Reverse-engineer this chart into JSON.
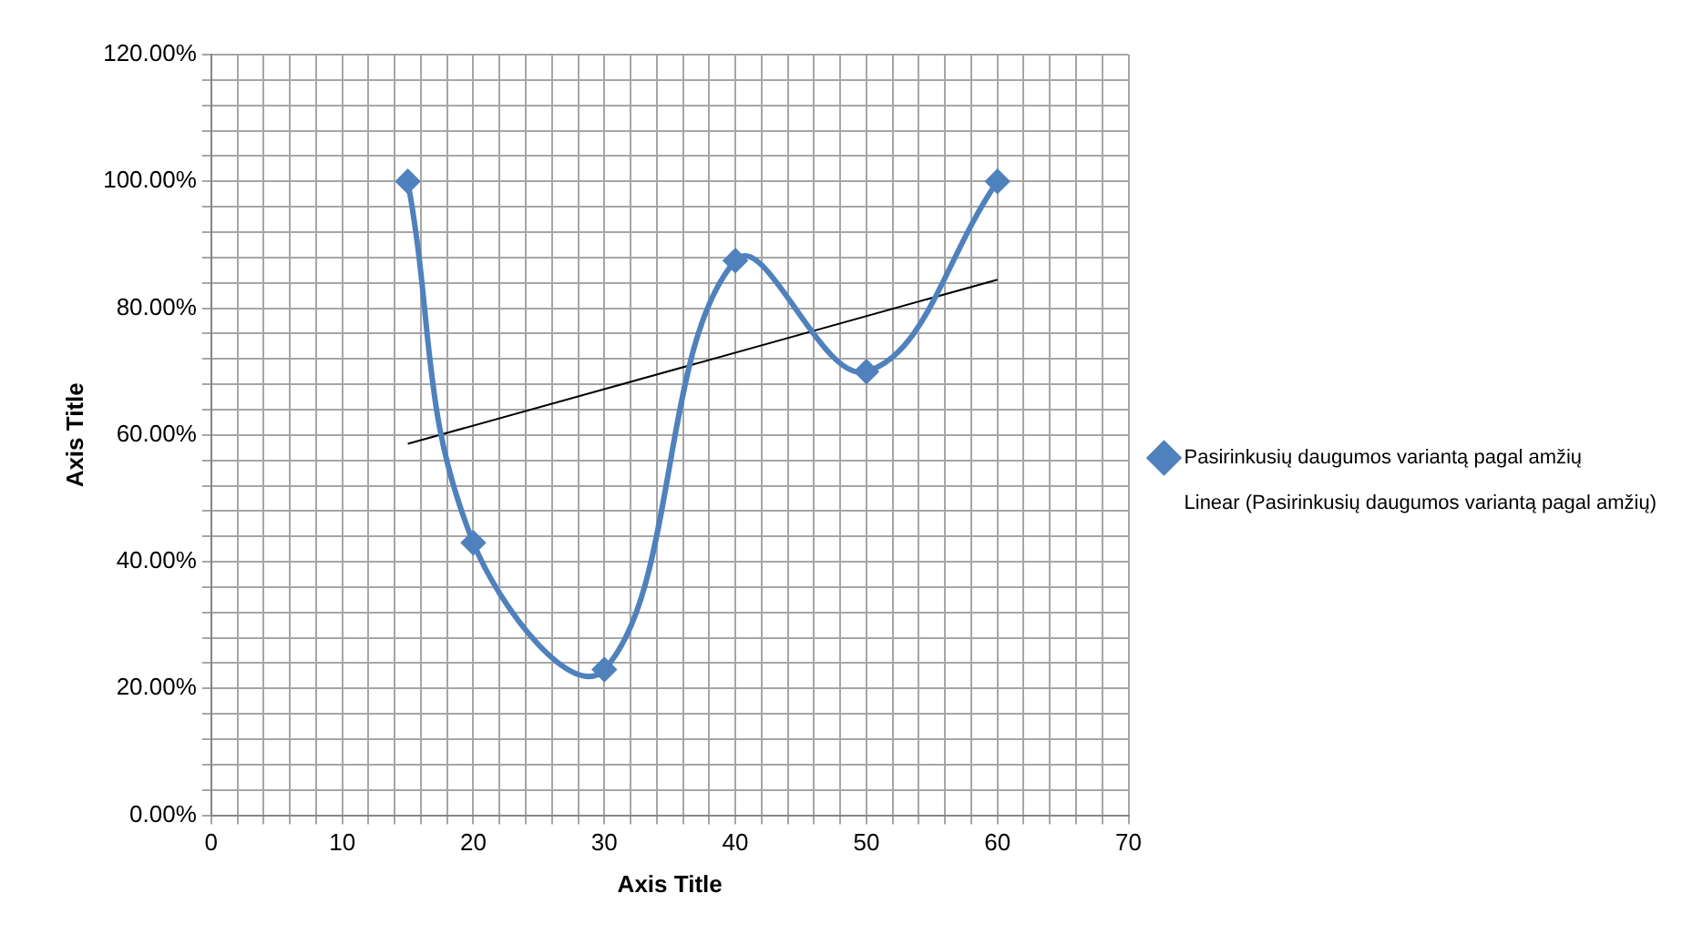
{
  "chart_data": {
    "type": "line",
    "xlabel": "Axis Title",
    "ylabel": "Axis Title",
    "series": [
      {
        "name": "Pasirinkusių daugumos variantą pagal amžių",
        "color": "#4f81bd",
        "x": [
          15,
          20,
          30,
          40,
          50,
          60
        ],
        "values": [
          100,
          43,
          23,
          87.5,
          70,
          100
        ],
        "marker": "diamond"
      },
      {
        "name": "Linear (Pasirinkusių daugumos variantą pagal amžių)",
        "color": "#000000",
        "x": [
          15,
          60
        ],
        "values": [
          58.6,
          84.5
        ],
        "marker": "none"
      }
    ],
    "xlim": [
      0,
      70
    ],
    "xticks": [
      0,
      {
        "value": 2,
        "label": null
      },
      {
        "value": 4,
        "label": null
      },
      {
        "value": 6,
        "label": null
      },
      {
        "value": 8,
        "label": null
      },
      10,
      {
        "value": 12,
        "label": null
      },
      {
        "value": 14,
        "label": null
      },
      {
        "value": 16,
        "label": null
      },
      {
        "value": 18,
        "label": null
      },
      20,
      {
        "value": 22,
        "label": null
      },
      {
        "value": 24,
        "label": null
      },
      {
        "value": 26,
        "label": null
      },
      {
        "value": 28,
        "label": null
      },
      30,
      {
        "value": 32,
        "label": null
      },
      {
        "value": 34,
        "label": null
      },
      {
        "value": 36,
        "label": null
      },
      {
        "value": 38,
        "label": null
      },
      40,
      {
        "value": 42,
        "label": null
      },
      {
        "value": 44,
        "label": null
      },
      {
        "value": 46,
        "label": null
      },
      {
        "value": 48,
        "label": null
      },
      50,
      {
        "value": 52,
        "label": null
      },
      {
        "value": 54,
        "label": null
      },
      {
        "value": 56,
        "label": null
      },
      {
        "value": 58,
        "label": null
      },
      60,
      {
        "value": 62,
        "label": null
      },
      {
        "value": 64,
        "label": null
      },
      {
        "value": 66,
        "label": null
      },
      {
        "value": 68,
        "label": null
      },
      70
    ],
    "ylim": [
      0,
      120
    ],
    "yticks": [
      {
        "value": 0,
        "label": "0.00%"
      },
      {
        "value": 4,
        "label": null
      },
      {
        "value": 8,
        "label": null
      },
      {
        "value": 12,
        "label": null
      },
      {
        "value": 16,
        "label": null
      },
      {
        "value": 20,
        "label": "20.00%"
      },
      {
        "value": 24,
        "label": null
      },
      {
        "value": 28,
        "label": null
      },
      {
        "value": 32,
        "label": null
      },
      {
        "value": 36,
        "label": null
      },
      {
        "value": 40,
        "label": "40.00%"
      },
      {
        "value": 44,
        "label": null
      },
      {
        "value": 48,
        "label": null
      },
      {
        "value": 52,
        "label": null
      },
      {
        "value": 56,
        "label": null
      },
      {
        "value": 60,
        "label": "60.00%"
      },
      {
        "value": 64,
        "label": null
      },
      {
        "value": 68,
        "label": null
      },
      {
        "value": 72,
        "label": null
      },
      {
        "value": 76,
        "label": null
      },
      {
        "value": 80,
        "label": "80.00%"
      },
      {
        "value": 84,
        "label": null
      },
      {
        "value": 88,
        "label": null
      },
      {
        "value": 92,
        "label": null
      },
      {
        "value": 96,
        "label": null
      },
      {
        "value": 100,
        "label": "100.00%"
      },
      {
        "value": 104,
        "label": null
      },
      {
        "value": 108,
        "label": null
      },
      {
        "value": 112,
        "label": null
      },
      {
        "value": 116,
        "label": null
      },
      {
        "value": 120,
        "label": "120.00%"
      }
    ],
    "grid": true,
    "legend": "right"
  }
}
